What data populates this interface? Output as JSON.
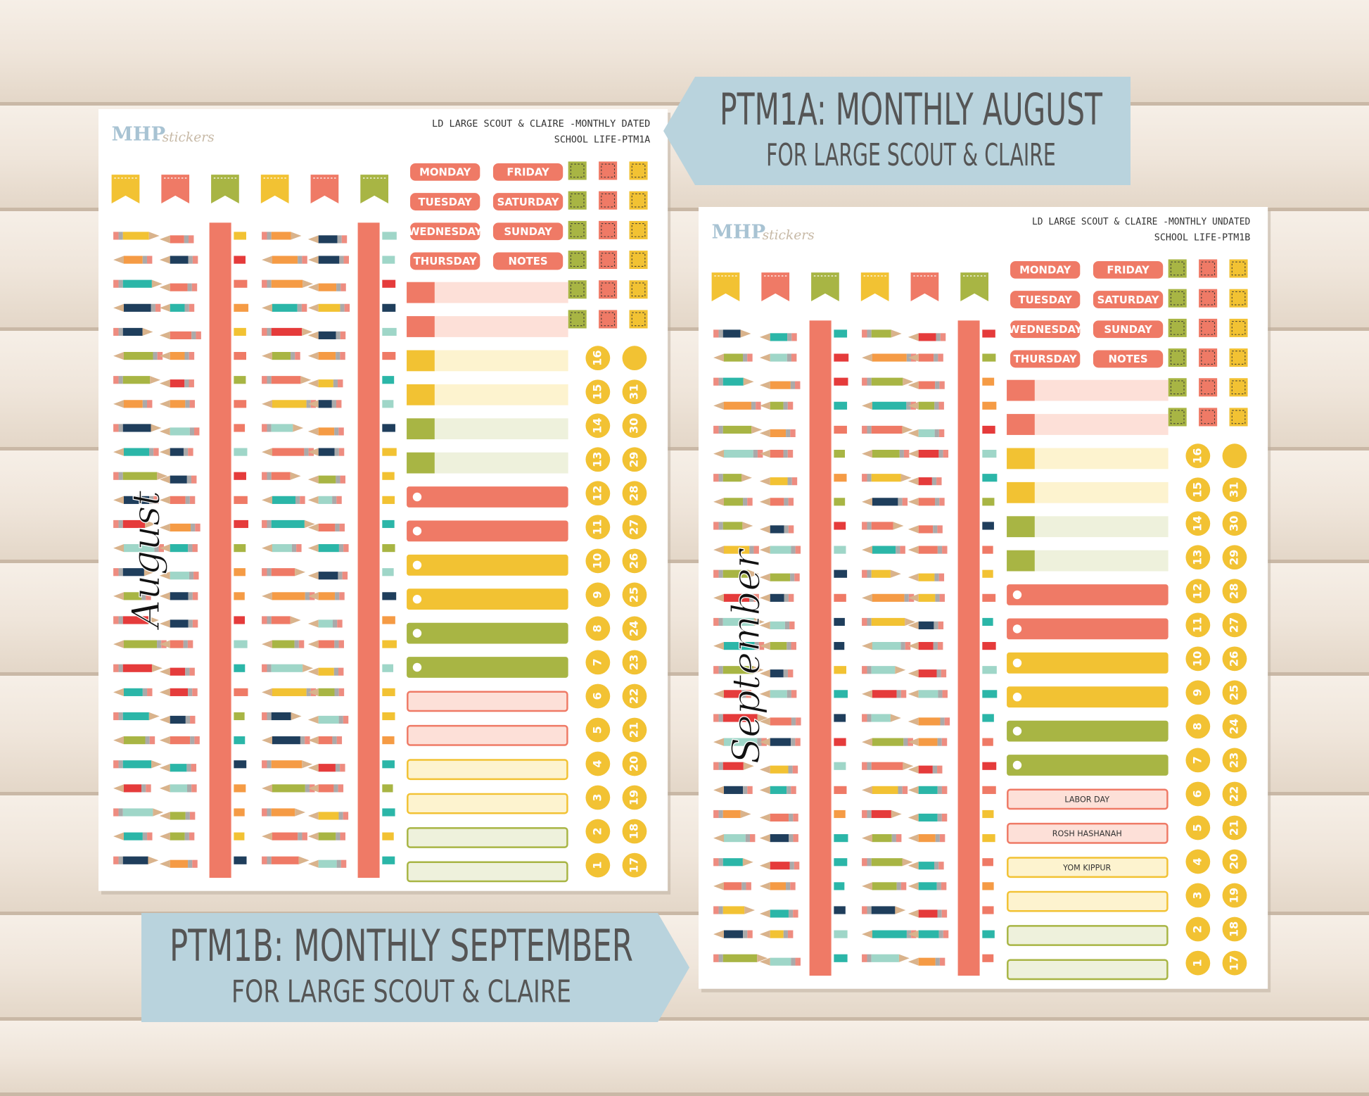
{
  "banners": [
    {
      "title": "PTM1A: MONTHLY AUGUST",
      "subtitle": "FOR LARGE SCOUT & CLAIRE"
    },
    {
      "title": "PTM1B: MONTHLY SEPTEMBER",
      "subtitle": "FOR LARGE SCOUT & CLAIRE"
    }
  ],
  "sheets": [
    {
      "logo_main": "MHP",
      "logo_script": "stickers",
      "header": [
        "LD LARGE SCOUT & CLAIRE -MONTHLY DATED",
        "SCHOOL LIFE-PTM1A"
      ],
      "month": "August",
      "days": [
        "MONDAY",
        "FRIDAY",
        "TUESDAY",
        "SATURDAY",
        "WEDNESDAY",
        "SUNDAY",
        "THURSDAY",
        "NOTES"
      ],
      "dates_left": [
        16,
        15,
        14,
        13,
        12,
        11,
        10,
        9,
        8,
        7,
        6,
        5,
        4,
        3,
        2,
        1
      ],
      "dates_right": [
        31,
        30,
        29,
        28,
        27,
        26,
        25,
        24,
        23,
        22,
        21,
        20,
        19,
        18,
        17
      ]
    },
    {
      "logo_main": "MHP",
      "logo_script": "stickers",
      "header": [
        "LD LARGE SCOUT & CLAIRE -MONTHLY UNDATED",
        "SCHOOL LIFE-PTM1B"
      ],
      "month": "September",
      "days": [
        "MONDAY",
        "FRIDAY",
        "TUESDAY",
        "SATURDAY",
        "WEDNESDAY",
        "SUNDAY",
        "THURSDAY",
        "NOTES"
      ],
      "dates_left": [
        16,
        15,
        14,
        13,
        12,
        11,
        10,
        9,
        8,
        7,
        6,
        5,
        4,
        3,
        2,
        1
      ],
      "dates_right": [
        31,
        30,
        29,
        28,
        27,
        26,
        25,
        24,
        23,
        22,
        21,
        20,
        19,
        18,
        17
      ],
      "event_labels": [
        "LABOR DAY",
        "ROSH HASHANAH",
        "YOM KIPPUR"
      ]
    }
  ]
}
